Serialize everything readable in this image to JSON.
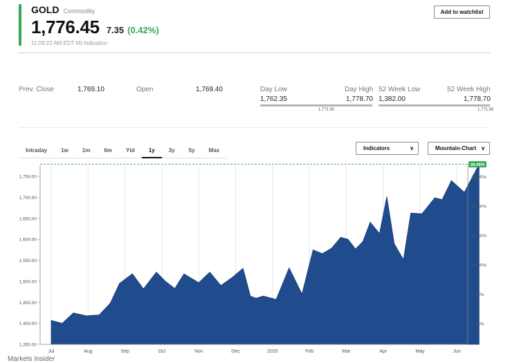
{
  "header": {
    "symbol": "GOLD",
    "symbol_type": "Commodity",
    "price": "1,776.45",
    "change": "7.35",
    "change_pct": "(0.42%)",
    "timestamp": "11:09:22 AM EDT MI Indication",
    "watchlist_label": "Add to watchlist"
  },
  "stats": {
    "prev_close_label": "Prev. Close",
    "prev_close": "1,769.10",
    "open_label": "Open",
    "open": "1,769.40",
    "day_low_label": "Day Low",
    "day_low": "1,762.35",
    "day_high_label": "Day High",
    "day_high": "1,778.70",
    "day_current": "1,771.90",
    "wk52_low_label": "52 Week Low",
    "wk52_low": "1,382.00",
    "wk52_high_label": "52 Week High",
    "wk52_high": "1,778.70",
    "wk52_current": "1,771.90"
  },
  "tabs": [
    "Intraday",
    "1w",
    "1m",
    "6m",
    "Ytd",
    "1y",
    "3y",
    "5y",
    "Max"
  ],
  "active_tab": "1y",
  "indicators_label": "Indicators",
  "chart_type_label": "Mountain-Chart",
  "footer": "Markets Insider",
  "colors": {
    "accent": "#35a853",
    "area_fill": "#204b8c",
    "reference_line": "#35a853"
  },
  "chart_data": {
    "type": "area",
    "x_ticks": [
      "Jul",
      "Aug",
      "Sep",
      "Oct",
      "Nov",
      "Dec",
      "2020",
      "Feb",
      "Mar",
      "Apr",
      "May",
      "Jun"
    ],
    "y_ticks_left": [
      "1,350.00",
      "1,400.00",
      "1,450.00",
      "1,500.00",
      "1,550.00",
      "1,600.00",
      "1,650.00",
      "1,700.00",
      "1,750.00"
    ],
    "y_ticks_right": [
      "0.00%",
      "5.00%",
      "10.00%",
      "15.00%",
      "20.00%",
      "25.00%"
    ],
    "ylim": [
      1350,
      1775
    ],
    "baseline": 1399.5,
    "last_value_label": "26.98%",
    "x_index": [
      0,
      0.3,
      0.6,
      0.95,
      1.3,
      1.6,
      1.85,
      2.2,
      2.5,
      2.85,
      3.1,
      3.35,
      3.6,
      4.0,
      4.3,
      4.6,
      4.9,
      5.2,
      5.4,
      5.55,
      5.75,
      6.1,
      6.45,
      6.8,
      7.1,
      7.35,
      7.6,
      7.85,
      8.05,
      8.25,
      8.45,
      8.65,
      8.9,
      9.1,
      9.3,
      9.55,
      9.75,
      10.05,
      10.4,
      10.6,
      10.85,
      11.2,
      11.6
    ],
    "values": [
      1407,
      1400,
      1425,
      1418,
      1420,
      1448,
      1495,
      1518,
      1482,
      1522,
      1500,
      1483,
      1518,
      1497,
      1522,
      1490,
      1509,
      1531,
      1465,
      1460,
      1465,
      1457,
      1532,
      1470,
      1575,
      1566,
      1579,
      1605,
      1600,
      1577,
      1595,
      1641,
      1614,
      1702,
      1590,
      1552,
      1663,
      1661,
      1699,
      1695,
      1740,
      1712,
      1779
    ]
  }
}
